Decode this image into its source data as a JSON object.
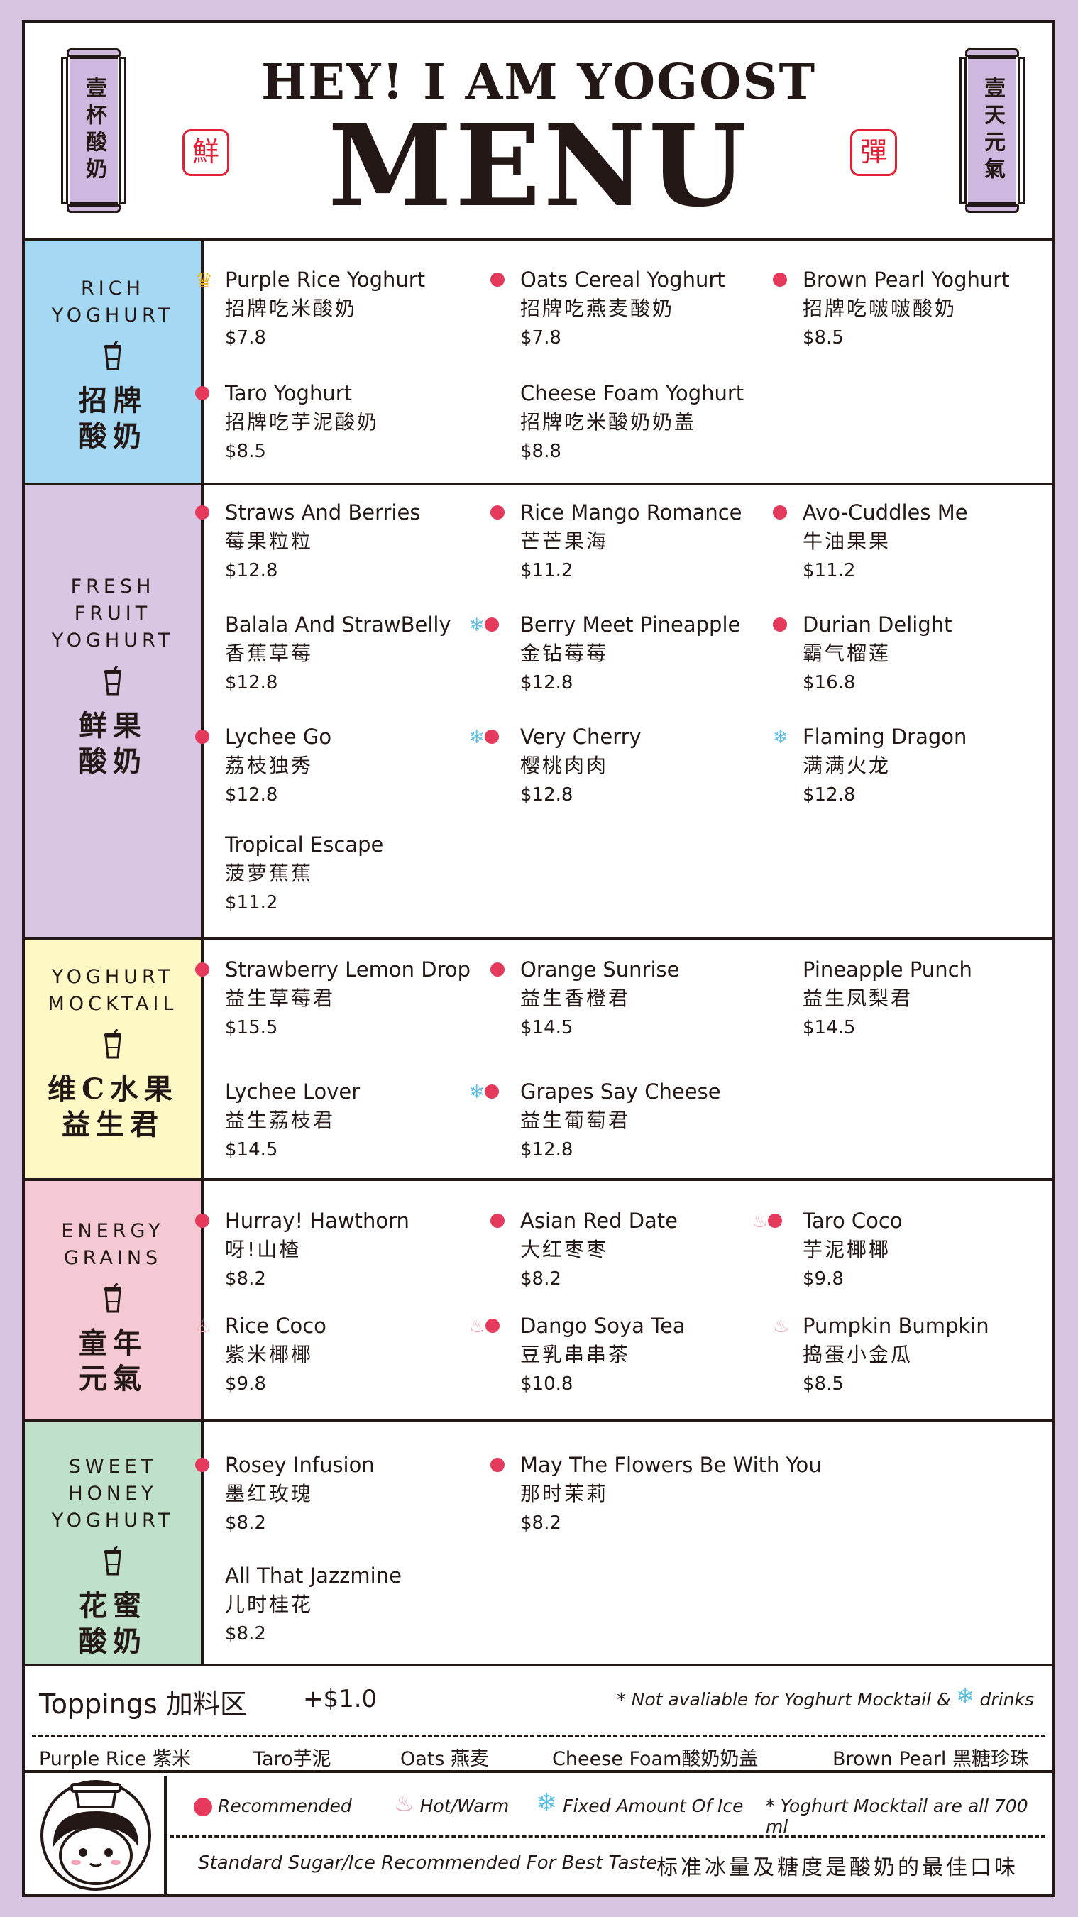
{
  "header": {
    "title_top": "HEY! I AM YOGOST",
    "title_main": "MENU",
    "plaque_left": "壹杯酸奶",
    "plaque_right": "壹天元氣",
    "seal_left": "鮮",
    "seal_right": "彈"
  },
  "colors": {
    "background": "#d7c4e0",
    "rich": "#a4d8f3",
    "fresh": "#d9c6e3",
    "mocktail": "#fdf8c4",
    "grains": "#f5c9d4",
    "honey": "#bfe0c9",
    "recommended": "#e63a5c",
    "ice": "#5bbde6",
    "hot": "#f2a2b5"
  },
  "sections": {
    "rich": {
      "title_en": "RICH\nYOGHURT",
      "title_zh": "招牌\n酸奶",
      "items": [
        {
          "en": "Purple Rice Yoghurt",
          "zh": "招牌吃米酸奶",
          "price": "$7.8",
          "marks": [
            "crown"
          ]
        },
        {
          "en": "Oats Cereal Yoghurt",
          "zh": "招牌吃燕麦酸奶",
          "price": "$7.8",
          "marks": [
            "recommended"
          ]
        },
        {
          "en": "Brown Pearl Yoghurt",
          "zh": "招牌吃啵啵酸奶",
          "price": "$8.5",
          "marks": [
            "recommended"
          ]
        },
        {
          "en": "Taro Yoghurt",
          "zh": "招牌吃芋泥酸奶",
          "price": "$8.5",
          "marks": [
            "recommended"
          ]
        },
        {
          "en": "Cheese Foam Yoghurt",
          "zh": "招牌吃米酸奶奶盖",
          "price": "$8.8",
          "marks": []
        }
      ]
    },
    "fresh": {
      "title_en": "FRESH\nFRUIT\nYOGHURT",
      "title_zh": "鲜果\n酸奶",
      "items": [
        {
          "en": "Straws And Berries",
          "zh": "莓果粒粒",
          "price": "$12.8",
          "marks": [
            "recommended"
          ]
        },
        {
          "en": "Rice Mango Romance",
          "zh": "芒芒果海",
          "price": "$11.2",
          "marks": [
            "recommended"
          ]
        },
        {
          "en": "Avo-Cuddles Me",
          "zh": "牛油果果",
          "price": "$11.2",
          "marks": [
            "recommended"
          ]
        },
        {
          "en": "Balala And StrawBelly",
          "zh": "香蕉草莓",
          "price": "$12.8",
          "marks": []
        },
        {
          "en": "Berry Meet Pineapple",
          "zh": "金钻莓莓",
          "price": "$12.8",
          "marks": [
            "ice",
            "recommended"
          ]
        },
        {
          "en": "Durian Delight",
          "zh": "霸气榴莲",
          "price": "$16.8",
          "marks": [
            "recommended"
          ]
        },
        {
          "en": "Lychee Go",
          "zh": "荔枝独秀",
          "price": "$12.8",
          "marks": [
            "recommended"
          ]
        },
        {
          "en": "Very Cherry",
          "zh": "樱桃肉肉",
          "price": "$12.8",
          "marks": [
            "ice",
            "recommended"
          ]
        },
        {
          "en": "Flaming Dragon",
          "zh": "满满火龙",
          "price": "$12.8",
          "marks": [
            "ice"
          ]
        },
        {
          "en": "Tropical Escape",
          "zh": "菠萝蕉蕉",
          "price": "$11.2",
          "marks": []
        }
      ]
    },
    "mocktail": {
      "title_en": "YOGHURT\nMOCKTAIL",
      "title_zh": "维C水果\n益生君",
      "items": [
        {
          "en": "Strawberry Lemon Drop",
          "zh": "益生草莓君",
          "price": "$15.5",
          "marks": [
            "recommended"
          ]
        },
        {
          "en": "Orange Sunrise",
          "zh": "益生香橙君",
          "price": "$14.5",
          "marks": [
            "recommended"
          ]
        },
        {
          "en": "Pineapple Punch",
          "zh": "益生凤梨君",
          "price": "$14.5",
          "marks": []
        },
        {
          "en": "Lychee Lover",
          "zh": "益生荔枝君",
          "price": "$14.5",
          "marks": []
        },
        {
          "en": "Grapes Say Cheese",
          "zh": "益生葡萄君",
          "price": "$12.8",
          "marks": [
            "ice",
            "recommended"
          ]
        }
      ]
    },
    "grains": {
      "title_en": "ENERGY\nGRAINS",
      "title_zh": "童年\n元氣",
      "items": [
        {
          "en": "Hurray! Hawthorn",
          "zh": "呀!山楂",
          "price": "$8.2",
          "marks": [
            "recommended"
          ]
        },
        {
          "en": "Asian Red Date",
          "zh": "大红枣枣",
          "price": "$8.2",
          "marks": [
            "recommended"
          ]
        },
        {
          "en": "Taro Coco",
          "zh": "芋泥椰椰",
          "price": "$9.8",
          "marks": [
            "hot",
            "recommended"
          ]
        },
        {
          "en": "Rice Coco",
          "zh": "紫米椰椰",
          "price": "$9.8",
          "marks": [
            "hot"
          ]
        },
        {
          "en": "Dango Soya Tea",
          "zh": "豆乳串串茶",
          "price": "$10.8",
          "marks": [
            "hot",
            "recommended"
          ]
        },
        {
          "en": "Pumpkin Bumpkin",
          "zh": "捣蛋小金瓜",
          "price": "$8.5",
          "marks": [
            "hot"
          ]
        }
      ]
    },
    "honey": {
      "title_en": "SWEET\nHONEY\nYOGHURT",
      "title_zh": "花蜜\n酸奶",
      "items": [
        {
          "en": "Rosey Infusion",
          "zh": "墨红玫瑰",
          "price": "$8.2",
          "marks": [
            "recommended"
          ]
        },
        {
          "en": "May The Flowers Be With You",
          "zh": "那时茉莉",
          "price": "$8.2",
          "marks": [
            "recommended"
          ]
        },
        {
          "en": "All That Jazzmine",
          "zh": "儿时桂花",
          "price": "$8.2",
          "marks": []
        }
      ]
    }
  },
  "toppings": {
    "title": "Toppings 加料区",
    "price": "+$1.0",
    "note_pre": "* Not avaliable for Yoghurt  Mocktail &",
    "note_post": "drinks",
    "items": [
      "Purple Rice 紫米",
      "Taro芋泥",
      "Oats 燕麦",
      "Cheese Foam酸奶奶盖",
      "Brown Pearl 黑糖珍珠"
    ]
  },
  "footer": {
    "recommended": "Recommended",
    "hot": "Hot/Warm",
    "ice": "Fixed Amount Of Ice",
    "mocktail_note": "* Yoghurt Mocktail are all 700 ml",
    "standard_en": "Standard Sugar/Ice Recommended For Best Taste",
    "standard_zh": "标准冰量及糖度是酸奶的最佳口味"
  }
}
